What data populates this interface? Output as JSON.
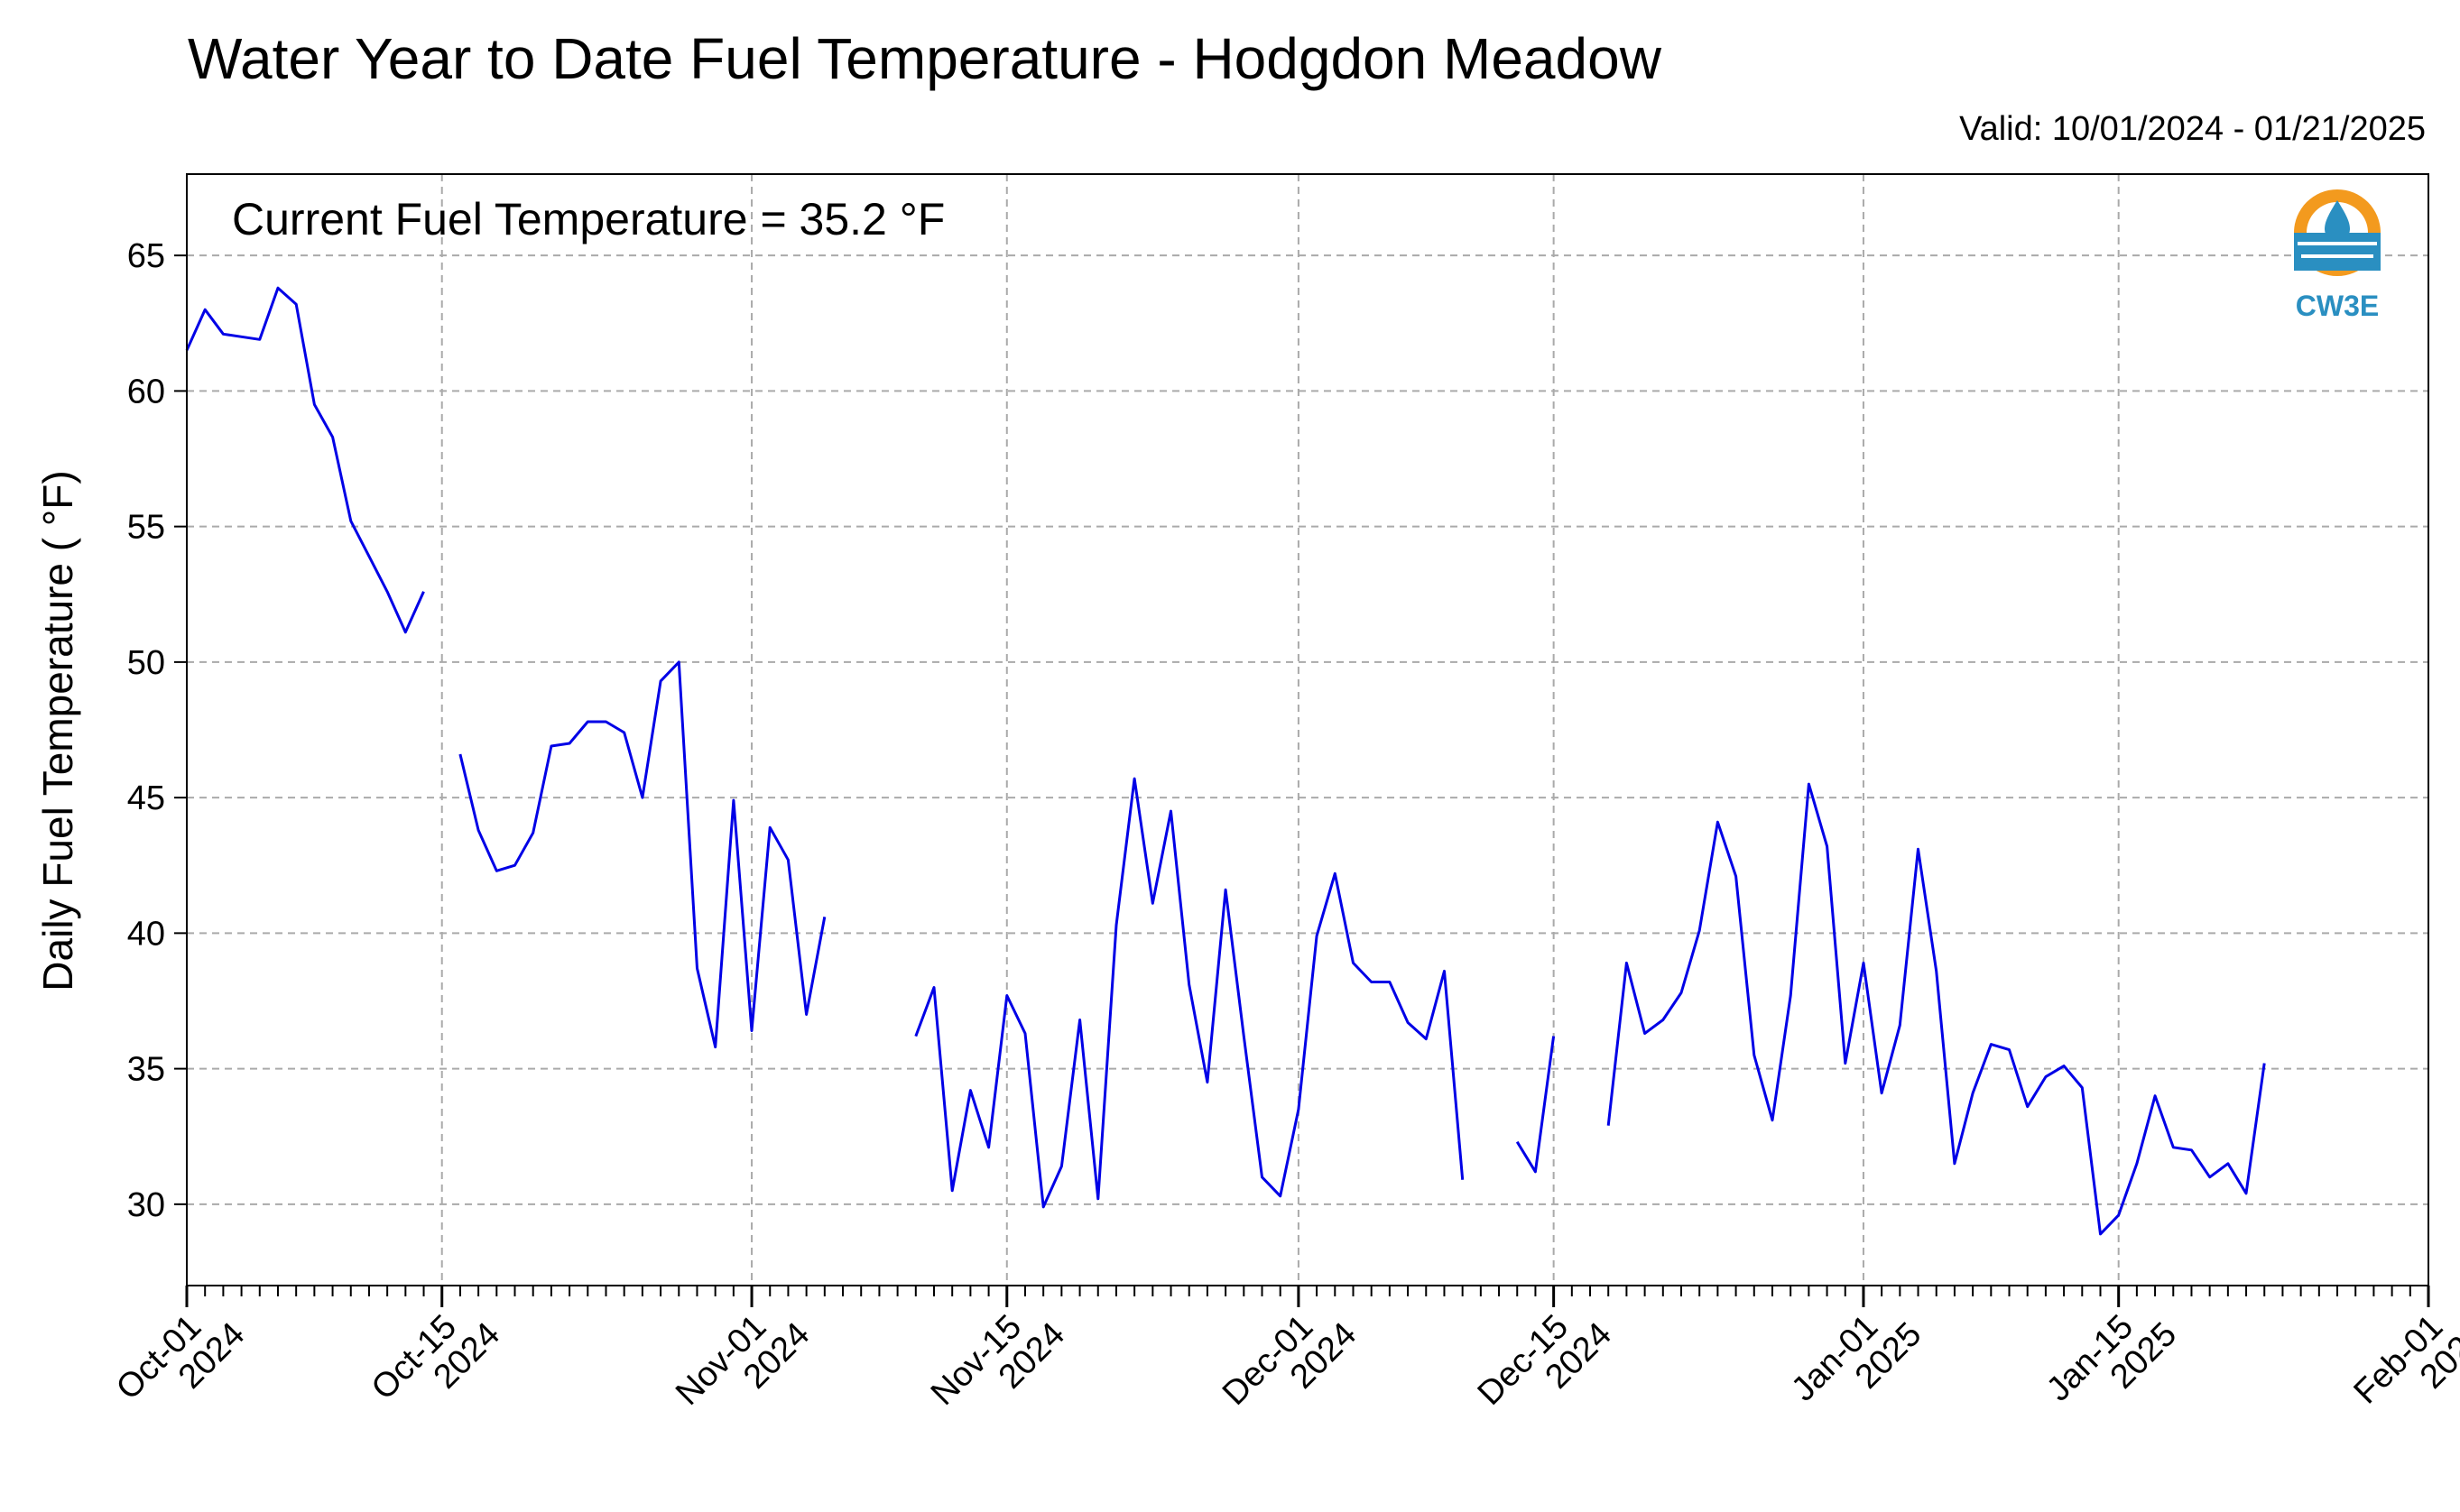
{
  "header": {
    "title": "Water Year to Date Fuel Temperature - Hodgdon Meadow",
    "valid": "Valid: 10/01/2024 - 01/21/2025"
  },
  "logo": {
    "text": "CW3E",
    "icon": "cw3e-logo-icon",
    "colors": [
      "#f39a1e",
      "#2a8fc1"
    ]
  },
  "chart_data": {
    "type": "line",
    "title": "Water Year to Date Fuel Temperature - Hodgdon Meadow",
    "subtitle": "Valid: 10/01/2024 - 01/21/2025",
    "annotation": "Current Fuel Temperature = 35.2  °F",
    "ylabel": "Daily Fuel Temperature ( °F)",
    "xlabel": "",
    "x_start": "2024-10-01",
    "xlim": [
      "2024-10-01",
      "2025-02-01"
    ],
    "ylim": [
      27,
      68
    ],
    "yticks": [
      30,
      35,
      40,
      45,
      50,
      55,
      60,
      65
    ],
    "xticks": [
      {
        "date": "2024-10-01",
        "label": [
          "Oct-01",
          "2024"
        ]
      },
      {
        "date": "2024-10-15",
        "label": [
          "Oct-15",
          "2024"
        ]
      },
      {
        "date": "2024-11-01",
        "label": [
          "Nov-01",
          "2024"
        ]
      },
      {
        "date": "2024-11-15",
        "label": [
          "Nov-15",
          "2024"
        ]
      },
      {
        "date": "2024-12-01",
        "label": [
          "Dec-01",
          "2024"
        ]
      },
      {
        "date": "2024-12-15",
        "label": [
          "Dec-15",
          "2024"
        ]
      },
      {
        "date": "2025-01-01",
        "label": [
          "Jan-01",
          "2025"
        ]
      },
      {
        "date": "2025-01-15",
        "label": [
          "Jan-15",
          "2025"
        ]
      },
      {
        "date": "2025-02-01",
        "label": [
          "Feb-01",
          "2025"
        ]
      }
    ],
    "grid": true,
    "line_color": "#0000e6",
    "series": [
      {
        "values": [
          61.5,
          63.0,
          62.1,
          62.0,
          61.9,
          63.8,
          63.2,
          59.5,
          58.3,
          55.2,
          53.9,
          52.6,
          51.1,
          52.6,
          null,
          46.6,
          43.8,
          42.3,
          42.5,
          43.7,
          46.9,
          47.0,
          47.8,
          47.8,
          47.4,
          45.0,
          49.3,
          50.0,
          38.7,
          35.8,
          44.9,
          36.4,
          43.9,
          42.7,
          37.0,
          40.6,
          null,
          null,
          null,
          null,
          36.2,
          38.0,
          30.5,
          34.2,
          32.1,
          37.7,
          36.3,
          29.9,
          31.4,
          36.8,
          30.2,
          40.3,
          45.7,
          41.1,
          44.5,
          38.1,
          34.5,
          41.6,
          36.2,
          31.0,
          30.3,
          33.5,
          39.9,
          42.2,
          38.9,
          38.2,
          38.2,
          36.7,
          36.1,
          38.6,
          30.9,
          null,
          null,
          32.3,
          31.2,
          36.2,
          null,
          null,
          32.9,
          38.9,
          36.3,
          36.8,
          37.8,
          40.1,
          44.1,
          42.1,
          35.5,
          33.1,
          37.7,
          45.5,
          43.2,
          35.2,
          38.9,
          34.1,
          36.6,
          43.1,
          38.6,
          31.5,
          34.1,
          35.9,
          35.7,
          33.6,
          34.7,
          35.1,
          34.3,
          28.9,
          29.6,
          31.5,
          34.0,
          32.1,
          32.0,
          31.0,
          31.5,
          30.4,
          35.2
        ]
      }
    ]
  }
}
